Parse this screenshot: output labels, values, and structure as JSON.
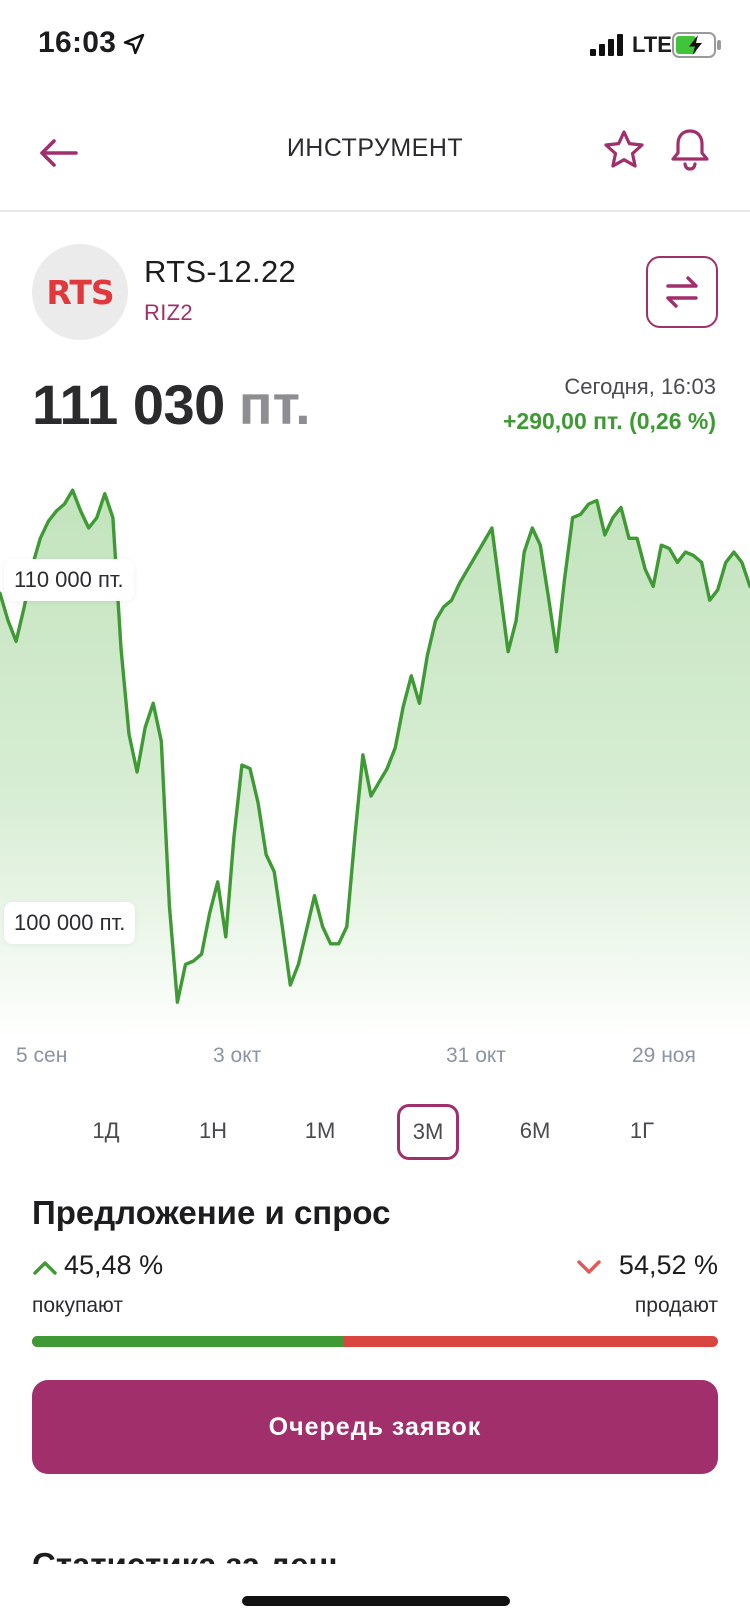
{
  "status_bar": {
    "time": "16:03",
    "network": "LTE",
    "icons": [
      "location-arrow-icon",
      "signal-icon",
      "battery-charging-icon"
    ]
  },
  "nav": {
    "title": "ИНСТРУМЕНТ",
    "icons": [
      "arrow-left-icon",
      "star-icon",
      "bell-icon"
    ]
  },
  "instrument": {
    "logo_text": "RTS",
    "name": "RTS-12.22",
    "ticker": "RIZ2",
    "swap_icon": "swap-arrows-icon"
  },
  "price": {
    "value": "111 030",
    "unit": "пт.",
    "timestamp": "Сегодня, 16:03",
    "change": "+290,00 пт. (0,26 %)"
  },
  "colors": {
    "accent": "#a12f6c",
    "positive": "#3e9a33",
    "negative": "#d9463f",
    "line": "#3f9a35",
    "fill": "#c9e6c4"
  },
  "chart_data": {
    "type": "area",
    "y_tick_labels": [
      "110 000 пт.",
      "100 000 пт."
    ],
    "y_ticks": [
      110000,
      100000
    ],
    "ylim": [
      96600,
      113480
    ],
    "x_tick_labels": [
      "5 сен",
      "3 окт",
      "31 окт",
      "29 ноя"
    ],
    "grid": false,
    "legend": "none",
    "series": [
      {
        "values": [
          109600,
          108800,
          108200,
          109200,
          110400,
          111200,
          111700,
          112000,
          112200,
          112600,
          112000,
          111500,
          111800,
          112500,
          111800,
          108000,
          105500,
          104400,
          105700,
          106400,
          105300,
          100500,
          97700,
          98800,
          98900,
          99100,
          100300,
          101200,
          99600,
          102500,
          104600,
          104500,
          103500,
          102000,
          101500,
          99900,
          98200,
          98800,
          99800,
          100800,
          99900,
          99400,
          99400,
          99900,
          102500,
          104900,
          103700,
          104100,
          104500,
          105100,
          106300,
          107200,
          106400,
          107800,
          108800,
          109200,
          109400,
          109900,
          110300,
          110700,
          111100,
          111500,
          109700,
          107900,
          108800,
          110800,
          111500,
          111000,
          109500,
          107900,
          110000,
          111800,
          111900,
          112200,
          112300,
          111300,
          111800,
          112100,
          111200,
          111200,
          110300,
          109800,
          111000,
          110900,
          110500,
          110800,
          110700,
          110500,
          109400,
          109700,
          110500,
          110800,
          110500,
          109800
        ]
      }
    ]
  },
  "periods": {
    "items": [
      "1Д",
      "1Н",
      "1М",
      "3М",
      "6М",
      "1Г"
    ],
    "selected": "3М"
  },
  "supply_demand": {
    "title": "Предложение и спрос",
    "buy_percent": "45,48 %",
    "buy_label": "покупают",
    "sell_percent": "54,52 %",
    "sell_label": "продают",
    "buy_ratio": 0.4548
  },
  "order_book_button": "Очередь заявок",
  "next_section_title": "Статистика за день"
}
